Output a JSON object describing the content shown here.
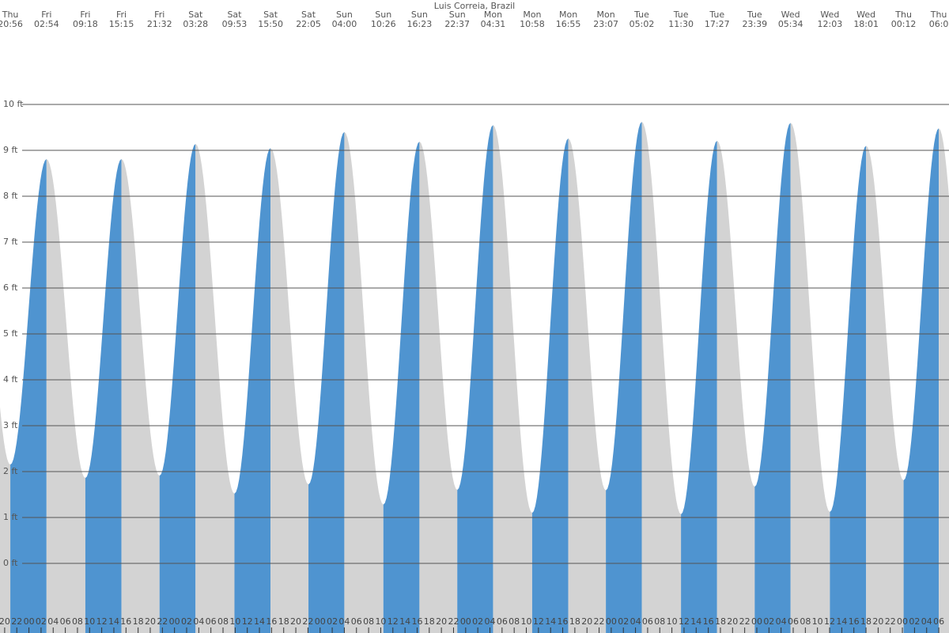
{
  "chart_data": {
    "type": "tide",
    "title": "Luis Correia, Brazil",
    "days": [
      "Thu",
      "Fri",
      "Fri",
      "Fri",
      "Fri",
      "Sat",
      "Sat",
      "Sat",
      "Sat",
      "Sun",
      "Sun",
      "Sun",
      "Sun",
      "Mon",
      "Mon",
      "Mon",
      "Mon",
      "Tue",
      "Tue",
      "Tue",
      "Tue",
      "Wed",
      "Wed",
      "Wed",
      "Thu",
      "Thu"
    ],
    "times": [
      "20:56",
      "02:54",
      "09:18",
      "15:15",
      "21:32",
      "03:28",
      "09:53",
      "15:50",
      "22:05",
      "04:00",
      "10:26",
      "16:23",
      "22:37",
      "04:31",
      "10:58",
      "16:55",
      "23:07",
      "05:02",
      "11:30",
      "17:27",
      "23:39",
      "05:34",
      "12:03",
      "18:01",
      "00:12",
      "06:0"
    ],
    "values": [
      2.15,
      8.81,
      1.86,
      8.81,
      1.91,
      9.14,
      1.52,
      9.05,
      1.72,
      9.4,
      1.28,
      9.19,
      1.6,
      9.55,
      1.1,
      9.26,
      1.59,
      9.62,
      1.07,
      9.21,
      1.67,
      9.6,
      1.12,
      9.1,
      1.81,
      9.48
    ],
    "rising_color": "#4f94d0",
    "falling_color": "#d3d3d3",
    "ylim": [
      0,
      10
    ],
    "yticks": [
      {
        "value": 0,
        "label": "0 ft"
      },
      {
        "value": 1,
        "label": "1 ft"
      },
      {
        "value": 2,
        "label": "2 ft"
      },
      {
        "value": 3,
        "label": "3 ft"
      },
      {
        "value": 4,
        "label": "4 ft"
      },
      {
        "value": 5,
        "label": "5 ft"
      },
      {
        "value": 6,
        "label": "6 ft"
      },
      {
        "value": 7,
        "label": "7 ft"
      },
      {
        "value": 8,
        "label": "8 ft"
      },
      {
        "value": 9,
        "label": "9 ft"
      },
      {
        "value": 10,
        "label": "10 ft"
      }
    ],
    "grid": true,
    "hour_labels": [
      "20",
      "22",
      "00",
      "02",
      "04",
      "06",
      "08",
      "10",
      "12",
      "14",
      "16",
      "18",
      "20",
      "22",
      "00",
      "02",
      "04",
      "06",
      "08",
      "10",
      "12",
      "14",
      "16",
      "18",
      "20",
      "22",
      "00",
      "02",
      "04",
      "06",
      "08",
      "10",
      "12",
      "14",
      "16",
      "18",
      "20",
      "22",
      "00",
      "02",
      "04",
      "06",
      "08",
      "10",
      "12",
      "14",
      "16",
      "18",
      "20",
      "22",
      "00",
      "02",
      "04",
      "06",
      "08",
      "10",
      "12",
      "14",
      "16",
      "18",
      "20",
      "22",
      "00",
      "02",
      "04",
      "06",
      "08",
      "10",
      "12",
      "14",
      "16",
      "18",
      "20",
      "22",
      "00",
      "02",
      "04",
      "06"
    ]
  }
}
